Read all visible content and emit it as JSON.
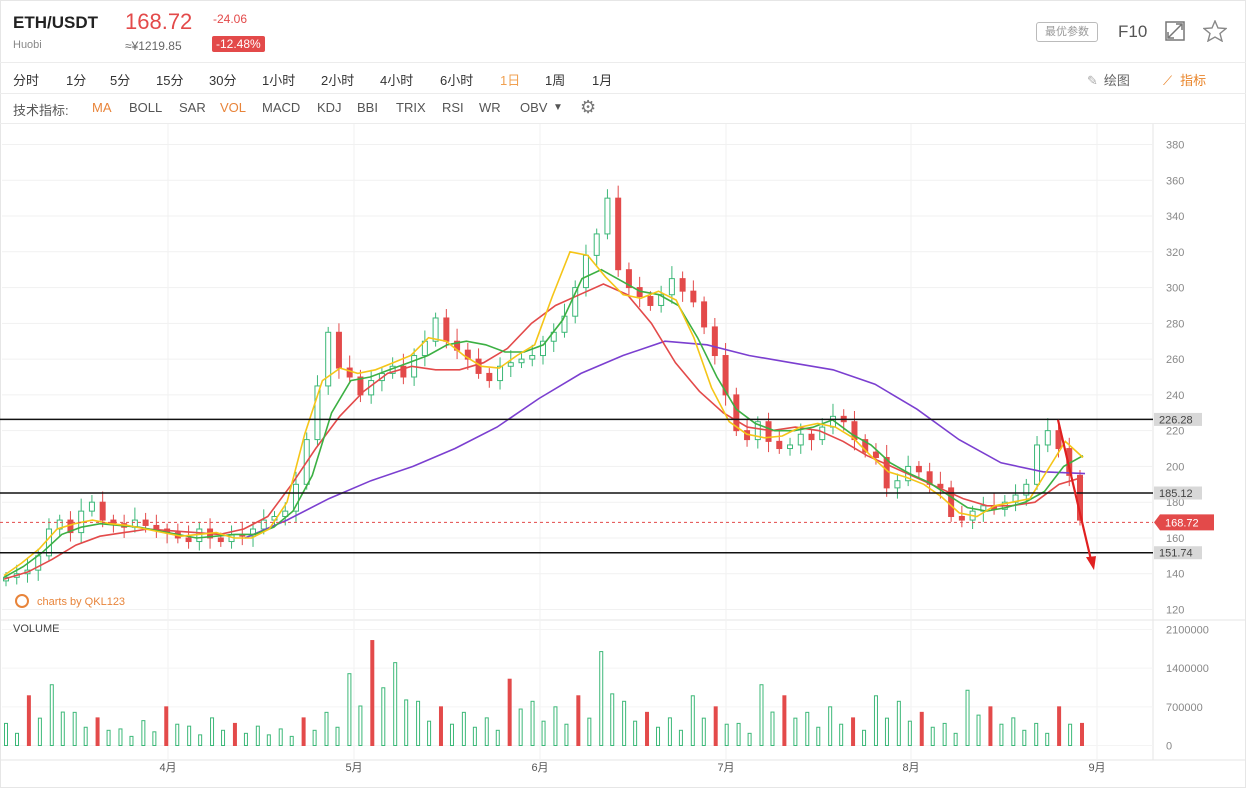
{
  "header": {
    "pair": "ETH/USDT",
    "exchange": "Huobi",
    "price": "168.72",
    "price_cny": "≈¥1219.85",
    "change": "-24.06",
    "change_pct": "-12.48%",
    "best_params": "最优参数",
    "f10": "F10"
  },
  "timeframes": [
    "分时",
    "1分",
    "5分",
    "15分",
    "30分",
    "1小时",
    "2小时",
    "4小时",
    "6小时",
    "1日",
    "1周",
    "1月"
  ],
  "active_timeframe": "1日",
  "tools": {
    "draw": "绘图",
    "indicators": "指标"
  },
  "indicators_label": "技术指标:",
  "indicators": [
    "MA",
    "BOLL",
    "SAR",
    "VOL",
    "MACD",
    "KDJ",
    "BBI",
    "TRIX",
    "RSI",
    "WR",
    "OBV"
  ],
  "active_indicators": [
    "MA",
    "VOL"
  ],
  "watermark": "charts by QKL123",
  "volume_label": "VOLUME",
  "colors": {
    "up": "#3cb878",
    "down": "#e34a4a",
    "ma5": "#f5c518",
    "ma10": "#3cb043",
    "ma20": "#e34a4a",
    "ma60": "#7b3fd0",
    "accent": "#e8843a"
  },
  "chart_data": {
    "type": "candlestick",
    "y_ticks": [
      120,
      140,
      160,
      180,
      200,
      220,
      240,
      260,
      280,
      300,
      320,
      340,
      360,
      380
    ],
    "volume_ticks": [
      0,
      700000,
      1400000,
      2100000
    ],
    "x_ticks": [
      "4月",
      "5月",
      "6月",
      "7月",
      "8月",
      "9月"
    ],
    "horizontal_lines": [
      {
        "value": 226.28,
        "label": "226.28"
      },
      {
        "value": 185.12,
        "label": "185.12"
      },
      {
        "value": 151.74,
        "label": "151.74"
      }
    ],
    "last_price": {
      "value": 168.72,
      "label": "168.72"
    },
    "annotation": {
      "type": "arrow",
      "from": 226,
      "to": 142,
      "color": "#e02020"
    },
    "candles_close_approx": [
      138,
      140,
      142,
      150,
      165,
      170,
      163,
      175,
      180,
      170,
      168,
      166,
      170,
      167,
      165,
      163,
      160,
      158,
      165,
      160,
      158,
      162,
      161,
      165,
      170,
      172,
      175,
      190,
      215,
      245,
      275,
      255,
      250,
      240,
      248,
      252,
      256,
      250,
      262,
      270,
      283,
      270,
      265,
      260,
      252,
      248,
      256,
      258,
      260,
      262,
      270,
      275,
      284,
      300,
      318,
      330,
      350,
      310,
      300,
      295,
      290,
      296,
      305,
      298,
      292,
      278,
      262,
      240,
      220,
      215,
      225,
      214,
      210,
      212,
      218,
      215,
      222,
      228,
      225,
      215,
      208,
      205,
      188,
      192,
      200,
      197,
      190,
      188,
      172,
      170,
      175,
      178,
      176,
      180,
      184,
      190,
      212,
      220,
      210,
      195,
      170
    ],
    "ma5_approx": [
      139,
      146,
      154,
      165,
      168,
      170,
      168,
      167,
      165,
      163,
      161,
      162,
      163,
      160,
      160,
      165,
      180,
      218,
      248,
      255,
      252,
      254,
      258,
      262,
      272,
      270,
      262,
      256,
      255,
      262,
      268,
      295,
      320,
      318,
      306,
      296,
      294,
      298,
      293,
      272,
      244,
      225,
      218,
      216,
      217,
      222,
      224,
      222,
      216,
      206,
      197,
      194,
      190,
      183,
      174,
      172,
      178,
      180,
      182,
      198,
      214,
      205
    ],
    "ma10_approx": [
      138,
      144,
      152,
      162,
      166,
      168,
      167,
      166,
      164,
      162,
      160,
      161,
      162,
      162,
      166,
      175,
      195,
      230,
      248,
      250,
      254,
      258,
      262,
      268,
      270,
      268,
      264,
      264,
      268,
      282,
      305,
      310,
      304,
      298,
      296,
      290,
      272,
      250,
      232,
      224,
      220,
      220,
      222,
      226,
      218,
      212,
      202,
      196,
      191,
      184,
      177,
      175,
      177,
      180,
      186,
      200,
      206
    ],
    "ma20_approx": [
      137,
      141,
      148,
      156,
      161,
      163,
      165,
      164,
      163,
      162,
      165,
      172,
      190,
      210,
      228,
      242,
      252,
      256,
      254,
      254,
      258,
      266,
      280,
      290,
      296,
      302,
      296,
      280,
      258,
      242,
      230,
      222,
      220,
      222,
      220,
      214,
      206,
      200,
      194,
      188,
      182,
      178,
      178,
      180,
      190,
      194
    ],
    "ma60_approx": [
      160,
      170,
      182,
      192,
      200,
      210,
      222,
      238,
      252,
      262,
      270,
      268,
      262,
      258,
      254,
      246,
      232,
      215,
      202,
      197,
      196
    ],
    "volume_approx": [
      400000,
      900000,
      1100000,
      600000,
      500000,
      300000,
      450000,
      700000,
      350000,
      500000,
      400000,
      350000,
      300000,
      500000,
      600000,
      1300000,
      1900000,
      1500000,
      800000,
      700000,
      600000,
      500000,
      1200000,
      800000,
      700000,
      900000,
      1700000,
      800000,
      600000,
      500000,
      900000,
      700000,
      400000,
      1100000,
      900000,
      600000,
      700000,
      500000,
      900000,
      800000,
      600000,
      400000,
      1000000,
      700000,
      500000,
      400000,
      700000,
      400000
    ]
  }
}
